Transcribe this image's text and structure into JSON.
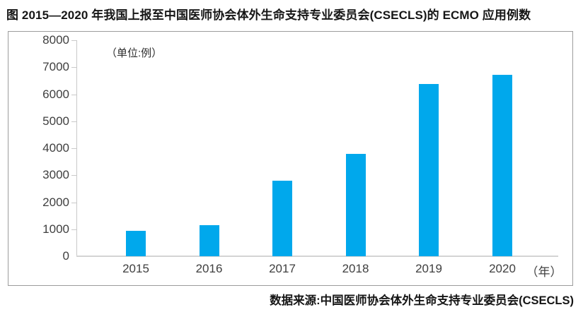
{
  "header": {
    "title": "图  2015—2020 年我国上报至中国医师协会体外生命支持专业委员会(CSECLS)的 ECMO 应用例数"
  },
  "footer": {
    "source": "数据来源:中国医师协会体外生命支持专业委员会(CSECLS)"
  },
  "chart_data": {
    "type": "bar",
    "title": "图 2015—2020 年我国上报至中国医师协会体外生命支持专业委员会(CSECLS)的 ECMO 应用例数",
    "unit_label": "（单位:例）",
    "x_axis_unit": "（年）",
    "categories": [
      "2015",
      "2016",
      "2017",
      "2018",
      "2019",
      "2020"
    ],
    "values": [
      950,
      1150,
      2800,
      3800,
      6380,
      6720
    ],
    "ylim": [
      0,
      8000
    ],
    "ytick_interval": 1000,
    "yticks": [
      0,
      1000,
      2000,
      3000,
      4000,
      5000,
      6000,
      7000,
      8000
    ],
    "grid": false,
    "legend": "none",
    "bar_color": "#00a8ec",
    "source": "数据来源:中国医师协会体外生命支持专业委员会(CSECLS)"
  },
  "colors": {
    "bar": "#00a8ec",
    "axis_line": "#c9c9c9",
    "box_border": "#9c9c9c",
    "title_text": "#161616",
    "tick_text": "#3f3f3f"
  }
}
